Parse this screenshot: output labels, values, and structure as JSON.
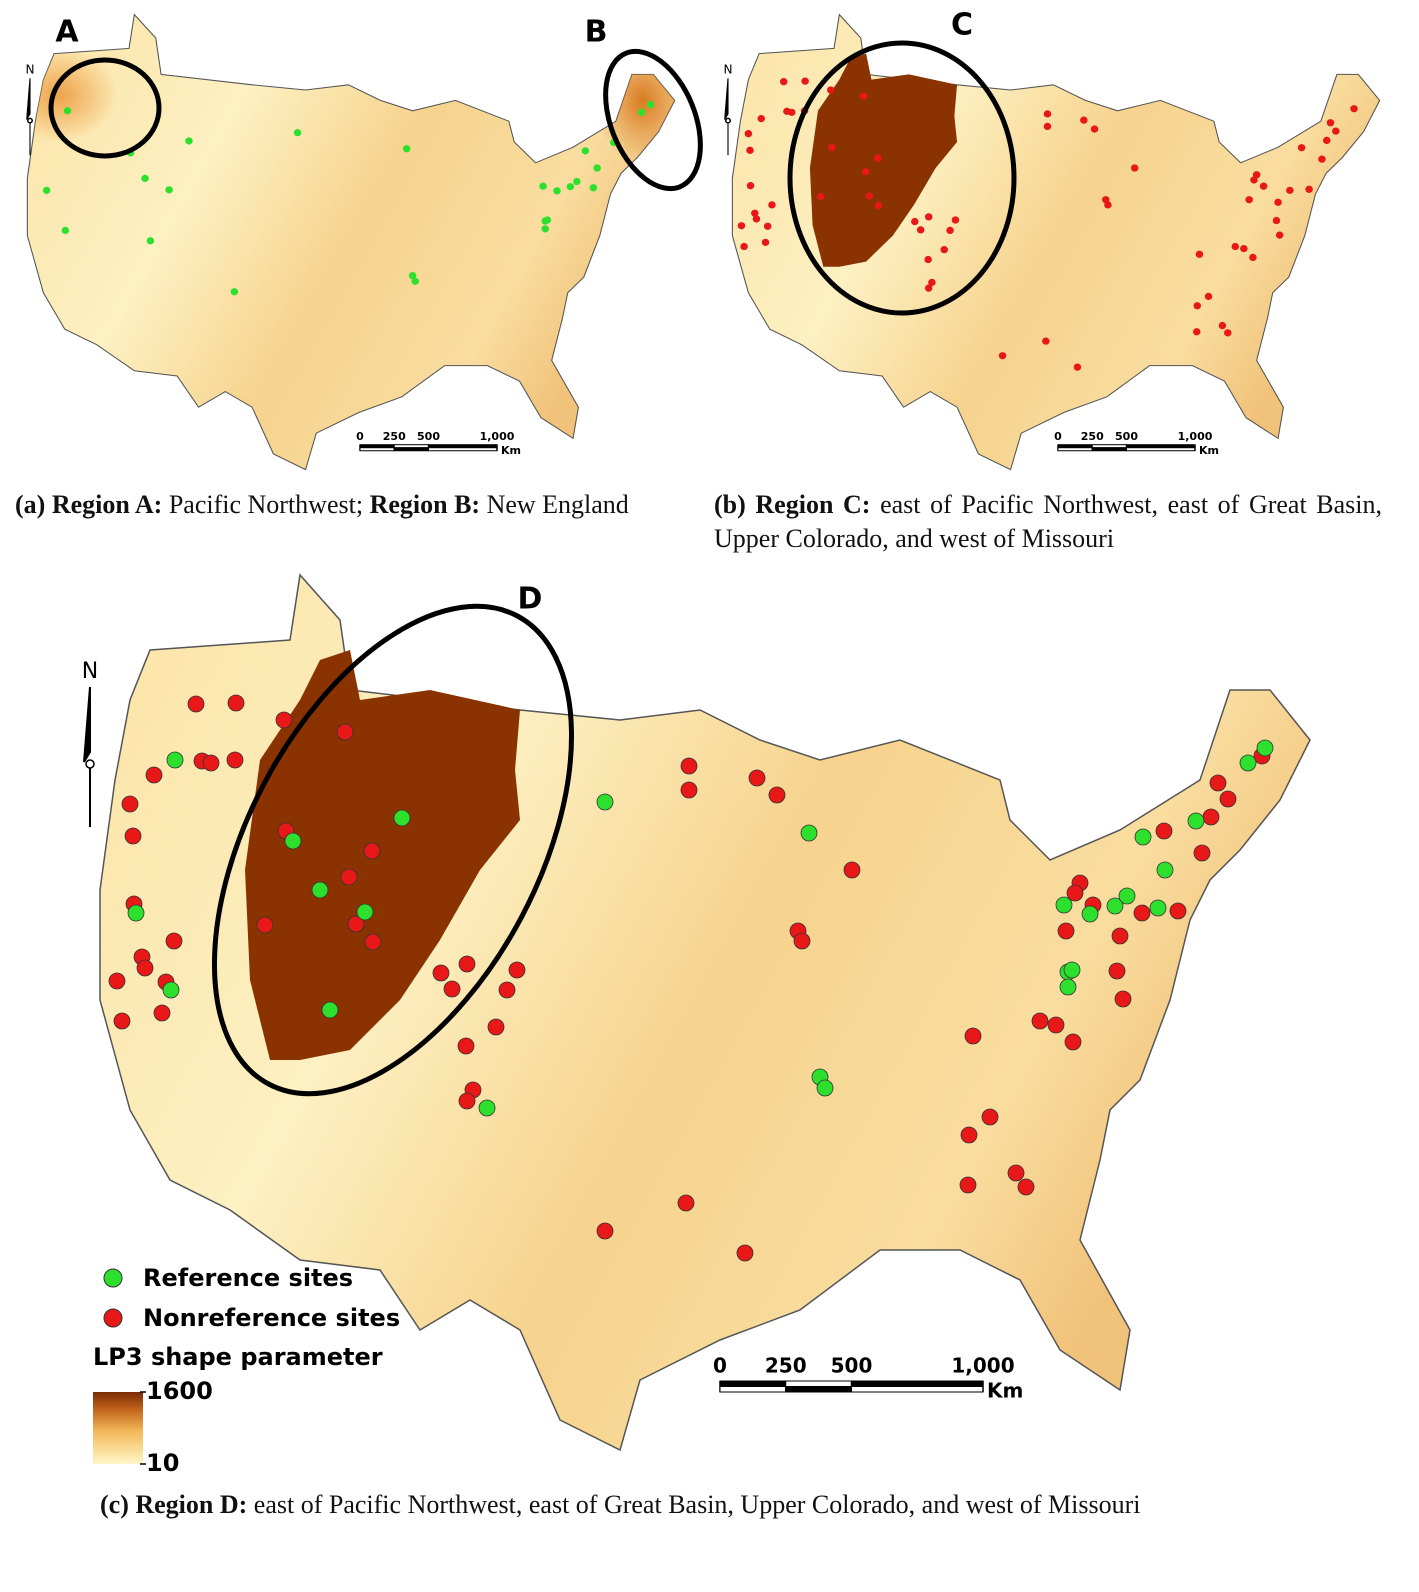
{
  "panel_a": {
    "region_labels": [
      "A",
      "B"
    ],
    "north": "N",
    "scale": {
      "ticks": [
        0,
        250,
        500,
        {
          "value": 1000,
          "label": "1,000"
        }
      ],
      "unit": "Km"
    },
    "caption": {
      "label": "(a)",
      "runs": [
        {
          "text": "Region A:",
          "bold": true
        },
        {
          "text": "Pacific Northwest;",
          "bold": false
        },
        {
          "text": "Region B:",
          "bold": true
        },
        {
          "text": "New England",
          "bold": false
        }
      ]
    }
  },
  "panel_b": {
    "region_labels": [
      "C"
    ],
    "north": "N",
    "scale": {
      "ticks": [
        0,
        250,
        500,
        {
          "value": 1000,
          "label": "1,000"
        }
      ],
      "unit": "Km"
    },
    "caption": {
      "label": "(b)",
      "runs": [
        {
          "text": "Region C:",
          "bold": true
        },
        {
          "text": "east of Pacific Northwest, east of Great Basin, Upper Colorado, and west of Missouri",
          "bold": false
        }
      ]
    }
  },
  "panel_c": {
    "region_labels": [
      "D"
    ],
    "north": "N",
    "scale": {
      "ticks": [
        0,
        250,
        500,
        {
          "value": 1000,
          "label": "1,000"
        }
      ],
      "unit": "Km"
    },
    "legend": {
      "reference": "Reference sites",
      "nonreference": "Nonreference sites",
      "colorbar_title": "LP3 shape parameter",
      "colorbar_ticks": [
        10,
        1600
      ]
    },
    "caption": {
      "label": "(c)",
      "runs": [
        {
          "text": "Region D:",
          "bold": true
        },
        {
          "text": "east of Pacific Northwest, east of Great Basin, Upper Colorado, and west of Missouri",
          "bold": false
        }
      ]
    }
  }
}
